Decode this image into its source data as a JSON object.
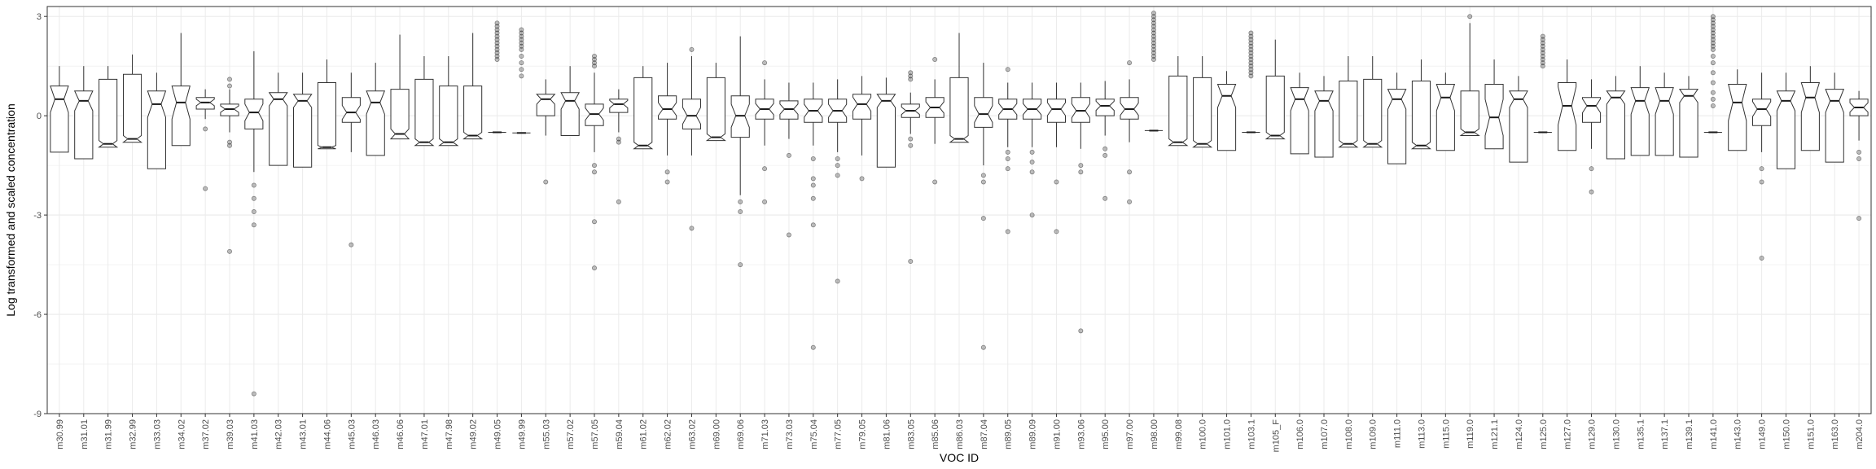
{
  "chart_data": {
    "type": "box",
    "xlabel": "VOC ID",
    "ylabel": "Log transformed and scaled concentration",
    "ylim": [
      -9,
      3.3
    ],
    "yticks": [
      3,
      0,
      -3,
      -6,
      -9
    ],
    "yticklabels": [
      "3",
      "0",
      "-3",
      "-6",
      "-9"
    ],
    "grid": true,
    "notched": true,
    "colors": {
      "box": "#333333",
      "grid": "#ebebeb",
      "outlier": "#333333"
    },
    "categories": [
      "m30.99",
      "m31.01",
      "m31.99",
      "m32.99",
      "m33.03",
      "m34.02",
      "m37.02",
      "m39.03",
      "m41.03",
      "m42.03",
      "m43.01",
      "m44.06",
      "m45.03",
      "m46.03",
      "m46.06",
      "m47.01",
      "m47.98",
      "m49.02",
      "m49.05",
      "m49.99",
      "m55.03",
      "m57.02",
      "m57.05",
      "m59.04",
      "m61.02",
      "m62.02",
      "m63.02",
      "m69.00",
      "m69.06",
      "m71.03",
      "m73.03",
      "m75.04",
      "m77.05",
      "m79.05",
      "m81.06",
      "m83.05",
      "m85.06",
      "m86.03",
      "m87.04",
      "m89.05",
      "m89.09",
      "m91.00",
      "m93.06",
      "m95.00",
      "m97.00",
      "m98.00",
      "m99.08",
      "m100.0",
      "m101.0",
      "m103.1",
      "m105_F",
      "m106.0",
      "m107.0",
      "m108.0",
      "m109.0",
      "m111.0",
      "m113.0",
      "m115.0",
      "m119.0",
      "m121.1",
      "m124.0",
      "m125.0",
      "m127.0",
      "m129.0",
      "m130.0",
      "m135.1",
      "m137.1",
      "m139.1",
      "m141.0",
      "m143.0",
      "m149.0",
      "m150.0",
      "m151.0",
      "m163.0",
      "m204.0"
    ],
    "boxes": [
      {
        "q1": -1.1,
        "med": 0.5,
        "q3": 0.9,
        "lw": -1.1,
        "uw": 1.5,
        "out": []
      },
      {
        "q1": -1.3,
        "med": 0.45,
        "q3": 0.75,
        "lw": -1.3,
        "uw": 1.5,
        "out": []
      },
      {
        "q1": -0.95,
        "med": -0.85,
        "q3": 1.1,
        "lw": -0.95,
        "uw": 1.5,
        "out": []
      },
      {
        "q1": -0.8,
        "med": -0.7,
        "q3": 1.25,
        "lw": -0.8,
        "uw": 1.85,
        "out": []
      },
      {
        "q1": -1.6,
        "med": 0.35,
        "q3": 0.75,
        "lw": -1.6,
        "uw": 1.3,
        "out": []
      },
      {
        "q1": -0.9,
        "med": 0.4,
        "q3": 0.9,
        "lw": -0.9,
        "uw": 2.5,
        "out": []
      },
      {
        "q1": 0.2,
        "med": 0.4,
        "q3": 0.55,
        "lw": -0.1,
        "uw": 0.8,
        "out": [
          -0.4,
          -2.2
        ]
      },
      {
        "q1": 0.0,
        "med": 0.2,
        "q3": 0.35,
        "lw": -0.5,
        "uw": 0.8,
        "out": [
          1.1,
          0.9,
          -0.8,
          -0.9,
          -4.1
        ]
      },
      {
        "q1": -0.4,
        "med": 0.1,
        "q3": 0.5,
        "lw": -1.7,
        "uw": 1.95,
        "out": [
          -2.1,
          -2.5,
          -2.9,
          -3.3,
          -8.4
        ]
      },
      {
        "q1": -1.5,
        "med": 0.5,
        "q3": 0.7,
        "lw": -1.5,
        "uw": 1.3,
        "out": []
      },
      {
        "q1": -1.55,
        "med": 0.45,
        "q3": 0.65,
        "lw": -1.55,
        "uw": 1.3,
        "out": []
      },
      {
        "q1": -1.0,
        "med": -0.95,
        "q3": 1.0,
        "lw": -1.0,
        "uw": 1.7,
        "out": []
      },
      {
        "q1": -0.2,
        "med": 0.1,
        "q3": 0.55,
        "lw": -1.1,
        "uw": 1.3,
        "out": [
          -3.9
        ]
      },
      {
        "q1": -1.2,
        "med": 0.4,
        "q3": 0.75,
        "lw": -1.2,
        "uw": 1.6,
        "out": []
      },
      {
        "q1": -0.7,
        "med": -0.55,
        "q3": 0.8,
        "lw": -0.7,
        "uw": 2.45,
        "out": []
      },
      {
        "q1": -0.9,
        "med": -0.8,
        "q3": 1.1,
        "lw": -0.9,
        "uw": 1.8,
        "out": []
      },
      {
        "q1": -0.9,
        "med": -0.8,
        "q3": 0.9,
        "lw": -0.9,
        "uw": 1.8,
        "out": []
      },
      {
        "q1": -0.7,
        "med": -0.6,
        "q3": 0.9,
        "lw": -0.7,
        "uw": 2.5,
        "out": []
      },
      {
        "q1": -0.5,
        "med": -0.5,
        "q3": -0.5,
        "lw": -0.5,
        "uw": -0.5,
        "out": [
          1.7,
          1.8,
          1.9,
          2.0,
          2.1,
          2.2,
          2.3,
          2.4,
          2.5,
          2.6,
          2.7,
          2.8
        ]
      },
      {
        "q1": -0.52,
        "med": -0.52,
        "q3": -0.52,
        "lw": -0.52,
        "uw": -0.52,
        "out": [
          1.2,
          1.4,
          1.6,
          1.8,
          2.0,
          2.1,
          2.2,
          2.3,
          2.4,
          2.5,
          2.6
        ]
      },
      {
        "q1": 0.0,
        "med": 0.5,
        "q3": 0.65,
        "lw": -0.6,
        "uw": 1.1,
        "out": [
          -2.0
        ]
      },
      {
        "q1": -0.6,
        "med": 0.45,
        "q3": 0.7,
        "lw": -0.6,
        "uw": 1.5,
        "out": []
      },
      {
        "q1": -0.3,
        "med": 0.05,
        "q3": 0.35,
        "lw": -1.1,
        "uw": 1.3,
        "out": [
          1.5,
          1.6,
          1.7,
          1.8,
          -1.5,
          -1.7,
          -3.2,
          -4.6
        ]
      },
      {
        "q1": 0.1,
        "med": 0.35,
        "q3": 0.5,
        "lw": -0.5,
        "uw": 0.8,
        "out": [
          -0.7,
          -0.8,
          -2.6
        ]
      },
      {
        "q1": -1.0,
        "med": -0.9,
        "q3": 1.15,
        "lw": -1.0,
        "uw": 1.5,
        "out": []
      },
      {
        "q1": -0.1,
        "med": 0.2,
        "q3": 0.6,
        "lw": -1.2,
        "uw": 1.6,
        "out": [
          -1.7,
          -2.0
        ]
      },
      {
        "q1": -0.4,
        "med": 0.0,
        "q3": 0.5,
        "lw": -1.2,
        "uw": 1.8,
        "out": [
          2.0,
          -3.4
        ]
      },
      {
        "q1": -0.75,
        "med": -0.65,
        "q3": 1.15,
        "lw": -0.75,
        "uw": 1.6,
        "out": []
      },
      {
        "q1": -0.65,
        "med": 0.0,
        "q3": 0.6,
        "lw": -2.4,
        "uw": 2.4,
        "out": [
          -2.6,
          -2.9,
          -4.5
        ]
      },
      {
        "q1": -0.1,
        "med": 0.2,
        "q3": 0.5,
        "lw": -0.9,
        "uw": 1.1,
        "out": [
          1.6,
          -1.6,
          -2.6
        ]
      },
      {
        "q1": -0.1,
        "med": 0.2,
        "q3": 0.45,
        "lw": -0.7,
        "uw": 1.0,
        "out": [
          -1.2,
          -3.6
        ]
      },
      {
        "q1": -0.2,
        "med": 0.15,
        "q3": 0.5,
        "lw": -0.9,
        "uw": 1.0,
        "out": [
          -1.3,
          -1.9,
          -2.1,
          -2.5,
          -3.3,
          -7.0
        ]
      },
      {
        "q1": -0.2,
        "med": 0.15,
        "q3": 0.5,
        "lw": -1.1,
        "uw": 1.1,
        "out": [
          -1.3,
          -1.5,
          -1.8,
          -5.0
        ]
      },
      {
        "q1": -0.1,
        "med": 0.35,
        "q3": 0.65,
        "lw": -1.2,
        "uw": 1.2,
        "out": [
          -1.9
        ]
      },
      {
        "q1": -1.55,
        "med": 0.45,
        "q3": 0.65,
        "lw": -1.55,
        "uw": 1.15,
        "out": []
      },
      {
        "q1": -0.05,
        "med": 0.15,
        "q3": 0.35,
        "lw": -0.55,
        "uw": 0.7,
        "out": [
          1.2,
          1.3,
          1.1,
          -0.7,
          -0.9,
          -4.4
        ]
      },
      {
        "q1": -0.05,
        "med": 0.25,
        "q3": 0.55,
        "lw": -0.85,
        "uw": 1.1,
        "out": [
          1.7,
          -2.0
        ]
      },
      {
        "q1": -0.8,
        "med": -0.7,
        "q3": 1.15,
        "lw": -0.8,
        "uw": 2.5,
        "out": []
      },
      {
        "q1": -0.35,
        "med": 0.05,
        "q3": 0.55,
        "lw": -1.5,
        "uw": 1.6,
        "out": [
          -1.8,
          -2.0,
          -3.1,
          -7.0
        ]
      },
      {
        "q1": -0.1,
        "med": 0.2,
        "q3": 0.5,
        "lw": -0.95,
        "uw": 1.0,
        "out": [
          1.4,
          -1.1,
          -1.3,
          -1.6,
          -3.5
        ]
      },
      {
        "q1": -0.1,
        "med": 0.2,
        "q3": 0.5,
        "lw": -0.95,
        "uw": 1.0,
        "out": [
          -1.1,
          -1.4,
          -1.7,
          -3.0
        ]
      },
      {
        "q1": -0.2,
        "med": 0.2,
        "q3": 0.5,
        "lw": -0.95,
        "uw": 1.0,
        "out": [
          -2.0,
          -3.5
        ]
      },
      {
        "q1": -0.2,
        "med": 0.15,
        "q3": 0.55,
        "lw": -1.0,
        "uw": 1.0,
        "out": [
          -1.5,
          -1.7,
          -6.5
        ]
      },
      {
        "q1": 0.0,
        "med": 0.3,
        "q3": 0.5,
        "lw": -0.6,
        "uw": 1.05,
        "out": [
          -1.0,
          -1.2,
          -2.5
        ]
      },
      {
        "q1": -0.1,
        "med": 0.2,
        "q3": 0.55,
        "lw": -0.8,
        "uw": 1.1,
        "out": [
          1.6,
          -1.7,
          -2.6
        ]
      },
      {
        "q1": -0.45,
        "med": -0.45,
        "q3": -0.45,
        "lw": -0.45,
        "uw": -0.45,
        "out": [
          1.7,
          1.8,
          1.9,
          2.0,
          2.1,
          2.2,
          2.3,
          2.4,
          2.5,
          2.6,
          2.7,
          2.8,
          2.9,
          3.0,
          3.1
        ]
      },
      {
        "q1": -0.9,
        "med": -0.8,
        "q3": 1.2,
        "lw": -0.9,
        "uw": 1.8,
        "out": []
      },
      {
        "q1": -0.95,
        "med": -0.85,
        "q3": 1.15,
        "lw": -0.95,
        "uw": 1.8,
        "out": []
      },
      {
        "q1": -1.05,
        "med": 0.6,
        "q3": 0.95,
        "lw": -1.05,
        "uw": 1.35,
        "out": []
      },
      {
        "q1": -0.5,
        "med": -0.5,
        "q3": -0.5,
        "lw": -0.5,
        "uw": -0.5,
        "out": [
          1.2,
          1.3,
          1.4,
          1.5,
          1.6,
          1.7,
          1.8,
          1.9,
          2.0,
          2.1,
          2.2,
          2.3,
          2.4,
          2.5
        ]
      },
      {
        "q1": -0.7,
        "med": -0.6,
        "q3": 1.2,
        "lw": -0.7,
        "uw": 2.3,
        "out": []
      },
      {
        "q1": -1.15,
        "med": 0.5,
        "q3": 0.85,
        "lw": -1.15,
        "uw": 1.3,
        "out": []
      },
      {
        "q1": -1.25,
        "med": 0.45,
        "q3": 0.75,
        "lw": -1.25,
        "uw": 1.2,
        "out": []
      },
      {
        "q1": -0.95,
        "med": -0.85,
        "q3": 1.05,
        "lw": -0.95,
        "uw": 1.8,
        "out": []
      },
      {
        "q1": -0.95,
        "med": -0.85,
        "q3": 1.1,
        "lw": -0.95,
        "uw": 1.8,
        "out": []
      },
      {
        "q1": -1.45,
        "med": 0.5,
        "q3": 0.8,
        "lw": -1.45,
        "uw": 1.3,
        "out": []
      },
      {
        "q1": -1.0,
        "med": -0.9,
        "q3": 1.05,
        "lw": -1.0,
        "uw": 1.7,
        "out": []
      },
      {
        "q1": -1.05,
        "med": 0.55,
        "q3": 0.95,
        "lw": -1.05,
        "uw": 1.3,
        "out": []
      },
      {
        "q1": -0.6,
        "med": -0.5,
        "q3": 0.75,
        "lw": -0.6,
        "uw": 2.8,
        "out": [
          3.0
        ]
      },
      {
        "q1": -1.0,
        "med": -0.05,
        "q3": 0.95,
        "lw": -1.0,
        "uw": 1.7,
        "out": []
      },
      {
        "q1": -1.4,
        "med": 0.5,
        "q3": 0.75,
        "lw": -1.4,
        "uw": 1.2,
        "out": []
      },
      {
        "q1": -0.5,
        "med": -0.5,
        "q3": -0.5,
        "lw": -0.5,
        "uw": -0.5,
        "out": [
          1.5,
          1.6,
          1.7,
          1.8,
          1.9,
          2.0,
          2.1,
          2.2,
          2.3,
          2.4
        ]
      },
      {
        "q1": -1.05,
        "med": 0.3,
        "q3": 1.0,
        "lw": -1.05,
        "uw": 1.7,
        "out": []
      },
      {
        "q1": -0.2,
        "med": 0.3,
        "q3": 0.55,
        "lw": -1.0,
        "uw": 1.1,
        "out": [
          -1.6,
          -2.3
        ]
      },
      {
        "q1": -1.3,
        "med": 0.55,
        "q3": 0.75,
        "lw": -1.3,
        "uw": 1.2,
        "out": []
      },
      {
        "q1": -1.2,
        "med": 0.45,
        "q3": 0.85,
        "lw": -1.2,
        "uw": 1.5,
        "out": []
      },
      {
        "q1": -1.2,
        "med": 0.45,
        "q3": 0.85,
        "lw": -1.2,
        "uw": 1.3,
        "out": []
      },
      {
        "q1": -1.25,
        "med": 0.6,
        "q3": 0.8,
        "lw": -1.25,
        "uw": 1.2,
        "out": []
      },
      {
        "q1": -0.5,
        "med": -0.5,
        "q3": -0.5,
        "lw": -0.5,
        "uw": -0.5,
        "out": [
          0.3,
          0.5,
          0.7,
          1.0,
          1.3,
          1.6,
          1.8,
          2.0,
          2.1,
          2.2,
          2.3,
          2.4,
          2.5,
          2.6,
          2.7,
          2.8,
          2.9,
          3.0
        ]
      },
      {
        "q1": -1.05,
        "med": 0.4,
        "q3": 0.95,
        "lw": -1.05,
        "uw": 1.4,
        "out": []
      },
      {
        "q1": -0.3,
        "med": 0.2,
        "q3": 0.5,
        "lw": -1.1,
        "uw": 1.3,
        "out": [
          -1.6,
          -2.0,
          -4.3
        ]
      },
      {
        "q1": -1.6,
        "med": 0.45,
        "q3": 0.75,
        "lw": -1.6,
        "uw": 1.3,
        "out": []
      },
      {
        "q1": -1.05,
        "med": 0.55,
        "q3": 1.0,
        "lw": -1.05,
        "uw": 1.5,
        "out": []
      },
      {
        "q1": -1.4,
        "med": 0.45,
        "q3": 0.8,
        "lw": -1.4,
        "uw": 1.3,
        "out": []
      },
      {
        "q1": 0.0,
        "med": 0.25,
        "q3": 0.5,
        "lw": -0.75,
        "uw": 0.75,
        "out": [
          -1.1,
          -1.3,
          -3.1
        ]
      }
    ]
  }
}
